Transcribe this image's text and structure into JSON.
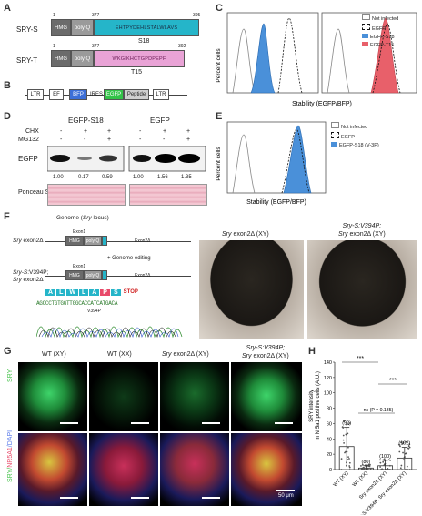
{
  "panels": {
    "A": "A",
    "B": "B",
    "C": "C",
    "D": "D",
    "E": "E",
    "F": "F",
    "G": "G",
    "H": "H"
  },
  "panelA": {
    "sry_s": {
      "name": "SRY-S",
      "start": "1",
      "mid": "377",
      "end": "395",
      "hmg": "HMG",
      "polyq": "poly Q",
      "seq": "EHTPYDEHLSTALWLAVS",
      "tag": "S18"
    },
    "sry_t": {
      "name": "SRY-T",
      "start": "1",
      "mid": "377",
      "end": "392",
      "hmg": "HMG",
      "polyq": "poly Q",
      "seq": "WKGIKHCTGPDPEPF",
      "tag": "T15"
    }
  },
  "panelB": {
    "ltr1": "LTR",
    "ef": "EF",
    "bfp": "BFP",
    "ires": "IRES",
    "egfp": "EGFP",
    "peptide": "Peptide",
    "ltr2": "LTR"
  },
  "panelC": {
    "ylabel": "Percent cells",
    "xlabel": "Stability (EGFP/BFP)",
    "legend": [
      "Not infected",
      "EGFP",
      "EGFP-S18",
      "EGFP-T15"
    ],
    "colors": {
      "s18": "#4a90d9",
      "t15": "#e8606a"
    }
  },
  "panelD": {
    "group1": "EGFP-S18",
    "group2": "EGFP",
    "chx": "CHX",
    "mg132": "MG132",
    "chx_signs": [
      "-",
      "+",
      "+",
      "-",
      "+",
      "+"
    ],
    "mg_signs": [
      "-",
      "-",
      "+",
      "-",
      "-",
      "+"
    ],
    "egfp": "EGFP",
    "ponceau": "Ponceau S",
    "values": [
      "1.00",
      "0.17",
      "0.59",
      "1.00",
      "1.56",
      "1.35"
    ]
  },
  "panelE": {
    "ylabel": "Percent cells",
    "xlabel": "Stability (EGFP/BFP)",
    "legend": [
      "Not infected",
      "EGFP",
      "EGFP-S18 (V-3P)"
    ]
  },
  "panelF": {
    "genome": "Genome (",
    "sry_locus": "Sry",
    "locus": " locus)",
    "exon1": "Exon1",
    "sry": "Sry",
    "exon2d": " exon2Δ",
    "exon2d_label": "Exon2Δ",
    "editing": "+ Genome editing",
    "sry_s": "Sry-S",
    "v394p": ":V394P;",
    "seq_letters": [
      "A",
      "L",
      "W",
      "L",
      "A",
      "P",
      "S"
    ],
    "stop": "STOP",
    "dna": "AGCCCTGTGGTTGGCACCATCATGACA",
    "mut": "V394P",
    "photo1_title": "Sry exon2Δ (XY)",
    "photo2_title_l1": "Sry-S:V394P;",
    "photo2_title_l2": "Sry exon2Δ (XY)"
  },
  "panelG": {
    "col_titles": [
      "WT (XY)",
      "WT (XX)",
      "Sry exon2Δ (XY)"
    ],
    "col4_l1": "Sry-S:V394P;",
    "col4_l2": "Sry exon2Δ (XY)",
    "row1": "SRY",
    "row2_a": "SRY/",
    "row2_b": "NR5A1",
    "row2_c": "/DAPI",
    "scale": "50 μm"
  },
  "panelH": {
    "ylabel_l1": "SRY intensity",
    "ylabel_l2": "in Nr5a1 positive cells (A.U.)",
    "yticks": [
      "0",
      "20",
      "40",
      "60",
      "80",
      "100",
      "120",
      "140"
    ],
    "categories": [
      "WT (XY)",
      "WT (XX)",
      "Sry exon2Δ (XY)",
      "Sry-S:V394P; Sry exon2Δ (XY)"
    ],
    "n": [
      "(92)",
      "(80)",
      "(100)",
      "(102)"
    ],
    "sig1": "***",
    "sig2": "***",
    "ns": "ns (P = 0.135)"
  },
  "chart_data": {
    "type": "bar",
    "categories": [
      "WT (XY)",
      "WT (XX)",
      "Sry exon2Δ (XY)",
      "Sry-S:V394P; Sry exon2Δ (XY)"
    ],
    "values": [
      30,
      2,
      5,
      15
    ],
    "errors": [
      25,
      3,
      7,
      14
    ],
    "ylim": [
      0,
      140
    ],
    "ylabel": "SRY intensity in Nr5a1 positive cells (A.U.)",
    "n": [
      92,
      80,
      100,
      102
    ]
  }
}
